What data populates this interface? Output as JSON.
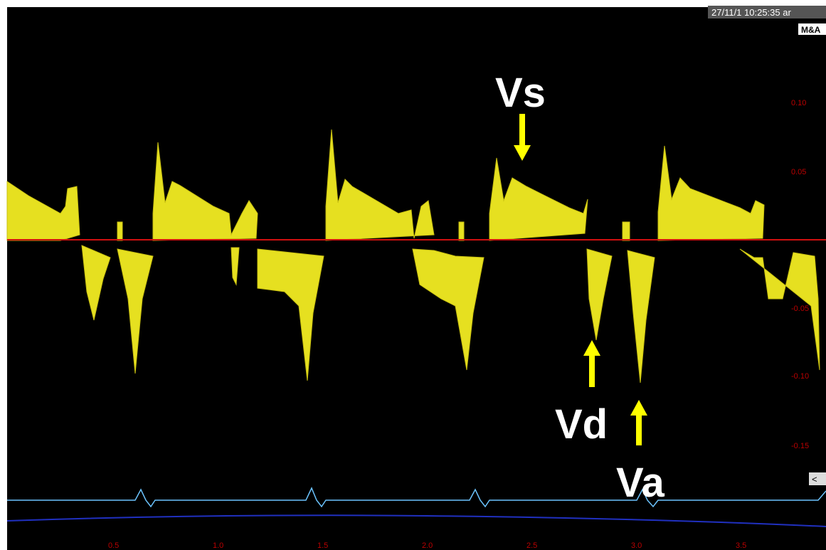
{
  "header": {
    "timestamp": "27/11/1 10:25:35 ar",
    "mode": "M&A"
  },
  "scale": {
    "velocity_labels": [
      "0.10",
      "0.05",
      "-0.05",
      "-0.10",
      "-0.15"
    ],
    "time_labels": [
      "0.5",
      "1.0",
      "1.5",
      "2.0",
      "2.5",
      "3.0",
      "3.5"
    ],
    "marker": "<"
  },
  "annotations": {
    "systolic": "Vs",
    "early_diastolic": "Vd",
    "atrial": "Va"
  }
}
